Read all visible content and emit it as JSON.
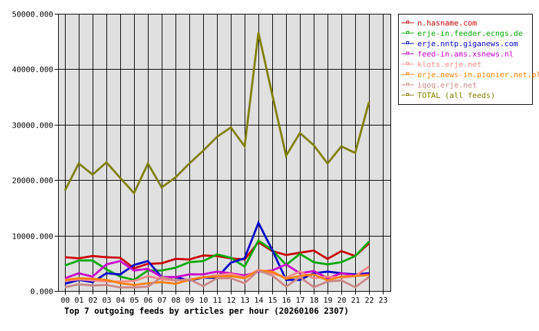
{
  "chart_data": {
    "type": "line",
    "title": "Top 7 outgoing feeds by articles per hour (20260106 2307)",
    "xlabel": "",
    "ylabel": "",
    "ylim": [
      0,
      50000
    ],
    "grid": true,
    "legend_position": "right",
    "y_ticks": [
      "0.000",
      "10000.000",
      "20000.000",
      "30000.000",
      "40000.000",
      "50000.000"
    ],
    "y_tick_values": [
      0,
      10000,
      20000,
      30000,
      40000,
      50000
    ],
    "categories": [
      "00",
      "01",
      "02",
      "03",
      "04",
      "05",
      "06",
      "07",
      "08",
      "09",
      "10",
      "11",
      "12",
      "13",
      "14",
      "15",
      "16",
      "17",
      "18",
      "19",
      "20",
      "21",
      "22",
      "23"
    ],
    "series": [
      {
        "name": "n.hasname.com",
        "color": "#cc0000",
        "values": [
          6100,
          5900,
          6300,
          6100,
          6000,
          4100,
          4900,
          5000,
          5800,
          5700,
          6400,
          6300,
          5900,
          5700,
          8800,
          7200,
          6500,
          6900,
          7300,
          5800,
          7200,
          6300,
          8600
        ]
      },
      {
        "name": "erje-in.feeder.ecngs.de",
        "color": "#00aa00",
        "values": [
          4600,
          5500,
          5500,
          3900,
          2600,
          2000,
          3700,
          3700,
          4200,
          5200,
          5400,
          6600,
          6000,
          4400,
          9100,
          7400,
          4700,
          6700,
          5200,
          4800,
          5200,
          6300,
          8900
        ]
      },
      {
        "name": "erje.nntp.giganews.com",
        "color": "#0000cc",
        "values": [
          1300,
          2000,
          1600,
          3200,
          3000,
          4700,
          5400,
          2500,
          2500,
          1900,
          2400,
          2400,
          5100,
          5900,
          12300,
          7400,
          2000,
          2000,
          3200,
          3500,
          3200,
          3000,
          3200
        ]
      },
      {
        "name": "feed-in.ams.xsnews.nl",
        "color": "#cc00cc",
        "values": [
          2300,
          3200,
          2600,
          4800,
          5400,
          3700,
          4000,
          2500,
          2500,
          3000,
          3000,
          3500,
          3200,
          2800,
          3500,
          3700,
          4800,
          3200,
          3600,
          2300,
          3200,
          2800,
          3000
        ]
      },
      {
        "name": "klots.erje.net",
        "color": "#ff8888",
        "values": [
          1800,
          2100,
          1900,
          1700,
          1700,
          1800,
          2700,
          2100,
          1900,
          2100,
          2400,
          2900,
          3100,
          2500,
          3800,
          3200,
          2400,
          3500,
          2300,
          2600,
          2400,
          2700,
          4400
        ]
      },
      {
        "name": "erje.news-in.pionier.net.pl",
        "color": "#ff8000",
        "values": [
          2000,
          2300,
          2200,
          2000,
          1400,
          1100,
          1400,
          1600,
          1300,
          2000,
          2500,
          2600,
          2700,
          2300,
          3700,
          3500,
          2200,
          2700,
          3000,
          1900,
          2600,
          2700,
          2900
        ]
      },
      {
        "name": "iqoq.erje.net",
        "color": "#cc8888",
        "values": [
          700,
          1200,
          1000,
          1100,
          650,
          650,
          800,
          2500,
          1900,
          2100,
          900,
          2300,
          2300,
          1400,
          3700,
          2800,
          800,
          2500,
          700,
          1700,
          1900,
          700,
          2500
        ]
      },
      {
        "name": "TOTAL (all feeds)",
        "color": "#808000",
        "values": [
          18150,
          23000,
          21000,
          23200,
          20400,
          17650,
          23000,
          18700,
          20500,
          23000,
          25300,
          27800,
          29500,
          26100,
          46600,
          35400,
          24400,
          28500,
          26300,
          23000,
          26100,
          24900,
          34100
        ]
      }
    ]
  },
  "plot": {
    "background": "#e0e0e0",
    "grid_color": "#000000"
  }
}
